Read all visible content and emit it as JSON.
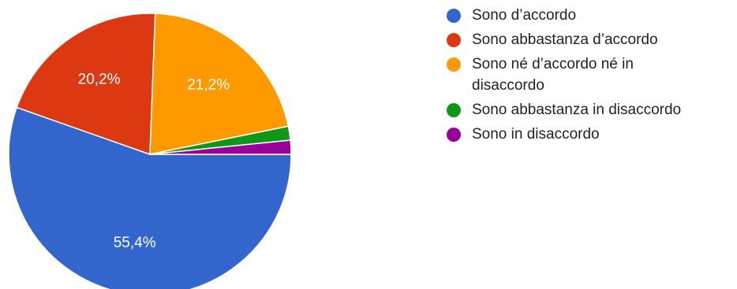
{
  "chart_data": {
    "type": "pie",
    "title": "",
    "slices": [
      {
        "label": "Sono d’accordo",
        "value": 55.4,
        "value_label": "55,4%",
        "color": "#3366cc"
      },
      {
        "label": "Sono abbastanza d’accordo",
        "value": 20.2,
        "value_label": "20,2%",
        "color": "#dc3912"
      },
      {
        "label": "Sono né d’accordo né in disaccordo",
        "value": 21.2,
        "value_label": "21,2%",
        "color": "#ff9900"
      },
      {
        "label": "Sono abbastanza in disaccordo",
        "value": 1.6,
        "value_label": "",
        "color": "#109618"
      },
      {
        "label": "Sono in disaccordo",
        "value": 1.6,
        "value_label": "",
        "color": "#990099"
      }
    ],
    "legend_position": "right"
  }
}
